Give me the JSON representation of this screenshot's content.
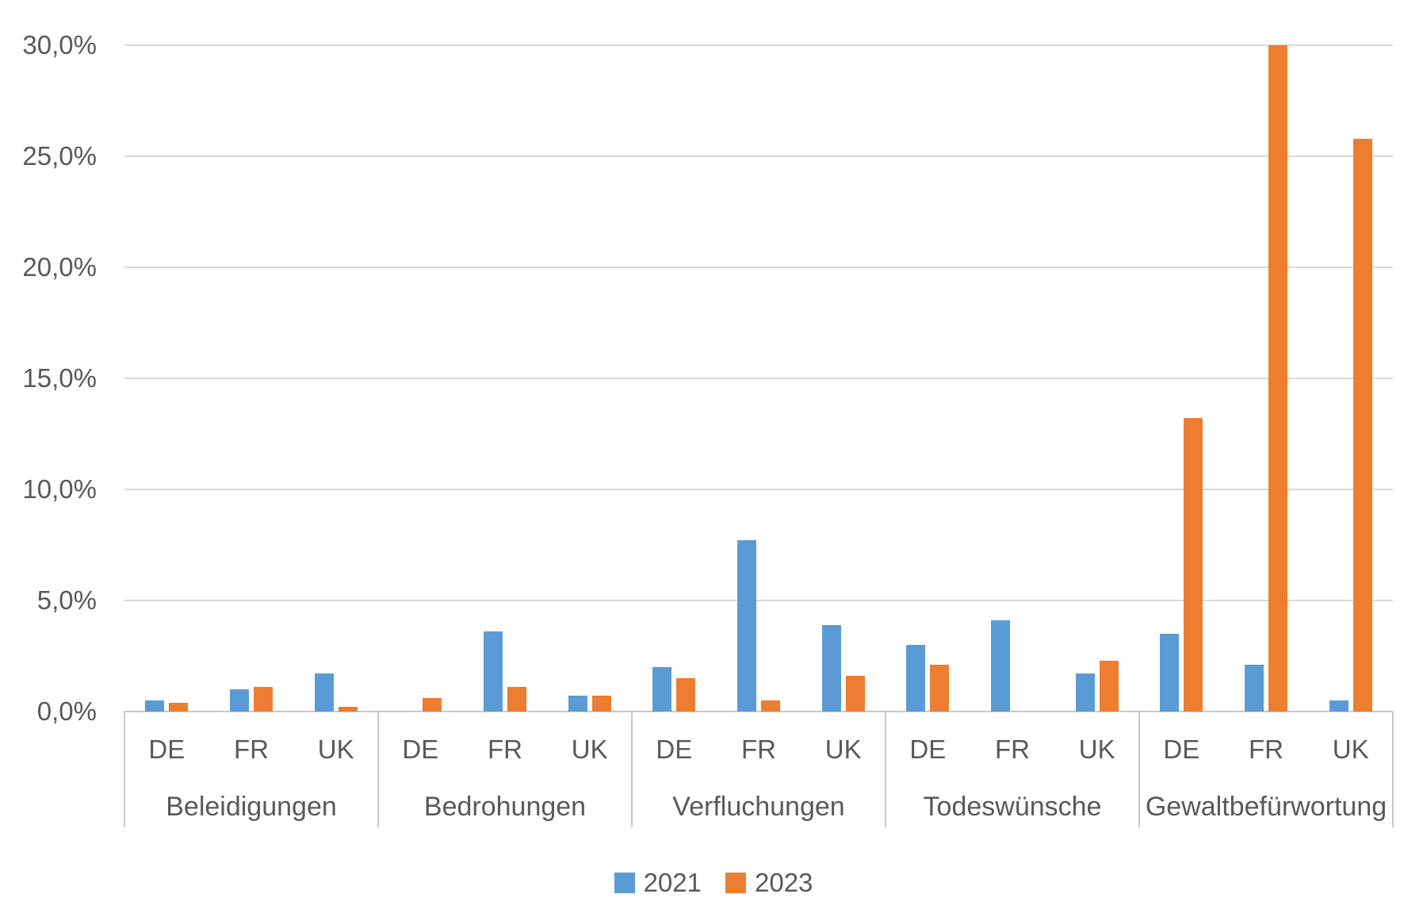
{
  "chart_data": {
    "type": "bar",
    "title": "",
    "xlabel": "",
    "ylabel": "",
    "groups": [
      "Beleidigungen",
      "Bedrohungen",
      "Verfluchungen",
      "Todeswünsche",
      "Gewaltbefürwortung"
    ],
    "subgroups": [
      "DE",
      "FR",
      "UK"
    ],
    "series": [
      {
        "name": "2021",
        "color": "#5B9BD5",
        "values": [
          [
            0.5,
            1.0,
            1.7
          ],
          [
            0.0,
            3.6,
            0.7
          ],
          [
            2.0,
            7.7,
            3.9
          ],
          [
            3.0,
            4.1,
            1.7
          ],
          [
            3.5,
            2.1,
            0.5
          ]
        ]
      },
      {
        "name": "2023",
        "color": "#ED7D31",
        "values": [
          [
            0.4,
            1.1,
            0.2
          ],
          [
            0.6,
            1.1,
            0.7
          ],
          [
            1.5,
            0.5,
            1.6
          ],
          [
            2.1,
            0.0,
            2.3
          ],
          [
            13.2,
            30.0,
            25.8
          ]
        ]
      }
    ],
    "y_axis": {
      "min": 0,
      "max": 30,
      "step": 5,
      "unit": "percent",
      "tick_labels": [
        "0,0%",
        "5,0%",
        "10,0%",
        "15,0%",
        "20,0%",
        "25,0%",
        "30,0%"
      ],
      "grid": true
    },
    "legend": {
      "position": "bottom",
      "entries": [
        "2021",
        "2023"
      ]
    }
  },
  "styles": {
    "series_colors": {
      "2021": "#5B9BD5",
      "2023": "#ED7D31"
    },
    "gridline_color": "#D9D9D9",
    "axis_line_color": "#C9C9C9",
    "text_color": "#595959",
    "background_color": "#FFFFFF"
  }
}
